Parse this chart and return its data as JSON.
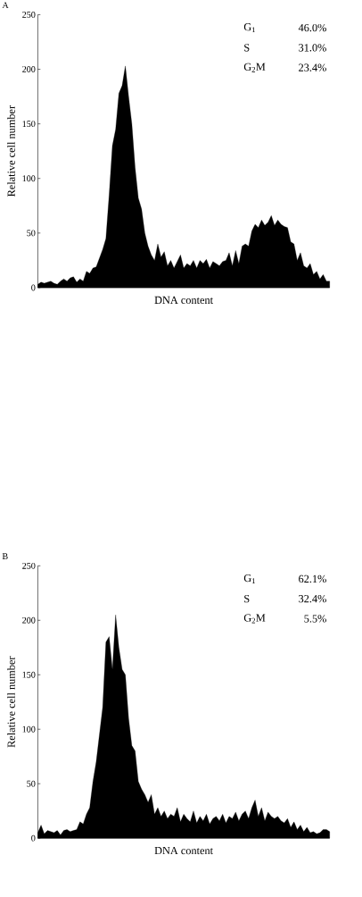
{
  "chart_data": [
    {
      "type": "area",
      "title": "A",
      "xlabel": "DNA content",
      "ylabel": "Relative cell number",
      "color": "#000000",
      "ylim": [
        0,
        250
      ],
      "yticks": [
        0,
        50,
        100,
        150,
        200,
        250
      ],
      "annotations": [
        "G$_{1}$",
        "46.0%",
        "S",
        "31.0%",
        "G$_{2}$M",
        "23.4%"
      ],
      "categories": [
        null,
        null,
        null,
        null,
        null,
        null,
        null,
        null,
        null,
        null,
        null,
        null,
        null,
        null,
        null,
        null,
        null,
        null,
        null,
        null,
        null,
        null,
        null,
        null,
        null,
        null,
        null,
        null,
        null,
        null,
        null,
        null,
        null,
        null,
        null,
        null,
        null,
        null,
        null,
        null,
        null,
        null,
        null,
        null,
        null,
        null,
        null,
        null,
        null,
        null,
        null,
        null,
        null,
        null,
        null,
        null,
        null,
        null,
        null,
        null,
        null,
        null,
        null,
        null,
        null,
        null,
        null,
        null,
        null,
        null,
        null,
        null,
        null,
        null,
        null,
        null,
        null,
        null,
        null,
        null,
        null,
        null,
        null,
        null,
        null,
        null,
        null,
        null,
        null,
        null,
        null
      ],
      "values": [
        3,
        5,
        4,
        5,
        6,
        4,
        3,
        6,
        8,
        6,
        9,
        10,
        5,
        8,
        6,
        15,
        13,
        18,
        19,
        27,
        35,
        45,
        85,
        130,
        145,
        178,
        185,
        203,
        175,
        150,
        110,
        82,
        72,
        50,
        38,
        30,
        25,
        40,
        28,
        33,
        20,
        25,
        18,
        24,
        30,
        18,
        22,
        20,
        25,
        18,
        25,
        22,
        26,
        18,
        24,
        22,
        20,
        24,
        25,
        32,
        20,
        34,
        22,
        38,
        40,
        38,
        52,
        58,
        55,
        62,
        57,
        60,
        66,
        57,
        62,
        58,
        56,
        55,
        42,
        40,
        25,
        32,
        20,
        18,
        22,
        12,
        15,
        8,
        12,
        6,
        6
      ]
    },
    {
      "type": "area",
      "title": "B",
      "xlabel": "DNA content",
      "ylabel": "Relative cell number",
      "color": "#000000",
      "ylim": [
        0,
        250
      ],
      "yticks": [
        0,
        50,
        100,
        150,
        200,
        250
      ],
      "annotations": [
        "G$_{1}$",
        "62.1%",
        "S",
        "32.4%",
        "G$_{2}$M",
        "5.5%"
      ],
      "categories": [
        null,
        null,
        null,
        null,
        null,
        null,
        null,
        null,
        null,
        null,
        null,
        null,
        null,
        null,
        null,
        null,
        null,
        null,
        null,
        null,
        null,
        null,
        null,
        null,
        null,
        null,
        null,
        null,
        null,
        null,
        null,
        null,
        null,
        null,
        null,
        null,
        null,
        null,
        null,
        null,
        null,
        null,
        null,
        null,
        null,
        null,
        null,
        null,
        null,
        null,
        null,
        null,
        null,
        null,
        null,
        null,
        null,
        null,
        null,
        null,
        null,
        null,
        null,
        null,
        null,
        null,
        null,
        null,
        null,
        null,
        null,
        null,
        null,
        null,
        null,
        null,
        null,
        null,
        null,
        null,
        null,
        null,
        null,
        null,
        null,
        null,
        null,
        null,
        null,
        null,
        null
      ],
      "values": [
        5,
        12,
        4,
        7,
        6,
        5,
        7,
        3,
        7,
        8,
        6,
        7,
        8,
        15,
        13,
        22,
        28,
        52,
        70,
        95,
        120,
        180,
        185,
        155,
        205,
        175,
        155,
        150,
        110,
        85,
        80,
        52,
        45,
        40,
        33,
        40,
        22,
        28,
        20,
        25,
        18,
        22,
        20,
        28,
        15,
        22,
        18,
        15,
        25,
        14,
        20,
        16,
        22,
        13,
        18,
        20,
        16,
        22,
        14,
        20,
        18,
        24,
        16,
        22,
        25,
        18,
        28,
        35,
        20,
        28,
        16,
        24,
        20,
        18,
        20,
        16,
        14,
        18,
        10,
        15,
        8,
        12,
        6,
        10,
        5,
        6,
        4,
        5,
        8,
        8,
        6
      ]
    }
  ]
}
